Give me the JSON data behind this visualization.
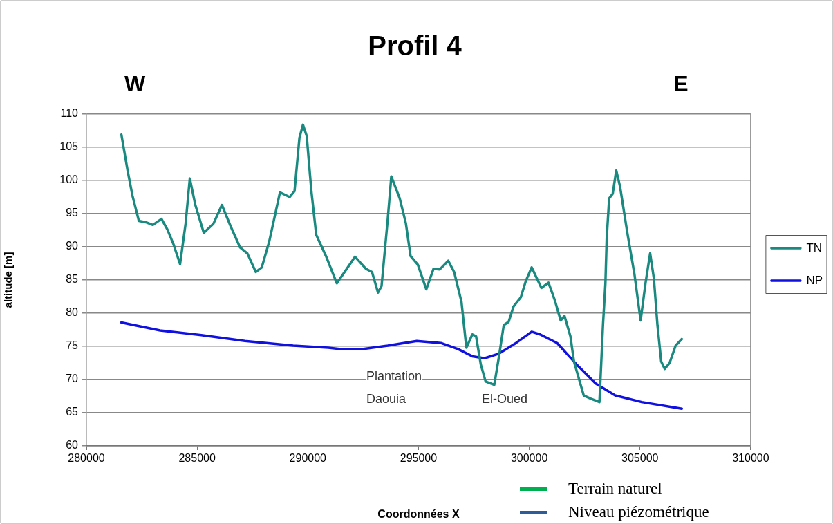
{
  "chart_data": {
    "type": "line",
    "title": "Profil 4",
    "xlabel": "Coordonnées X",
    "ylabel": "altitude [m]",
    "xlim": [
      280000,
      310000
    ],
    "xticks": [
      280000,
      285000,
      290000,
      295000,
      300000,
      305000,
      310000
    ],
    "ylim": [
      60,
      110
    ],
    "yticks": [
      60,
      65,
      70,
      75,
      80,
      85,
      90,
      95,
      100,
      105,
      110
    ],
    "grid": "y",
    "legend": "right",
    "marker": "none",
    "line_style": "solid",
    "series": [
      {
        "name": "TN",
        "color": "#1a8a80",
        "x": [
          281580,
          281860,
          282080,
          282370,
          282680,
          283000,
          283390,
          283660,
          283930,
          284230,
          284480,
          284670,
          284920,
          285300,
          285740,
          286120,
          286500,
          286940,
          287270,
          287650,
          287920,
          288250,
          288740,
          289180,
          289400,
          289620,
          289780,
          289950,
          290160,
          290380,
          290820,
          291310,
          292130,
          292620,
          292900,
          293170,
          293330,
          293610,
          293770,
          294150,
          294430,
          294640,
          294970,
          295350,
          295680,
          295960,
          296340,
          296610,
          296940,
          297160,
          297430,
          297600,
          297810,
          298030,
          298420,
          298630,
          298850,
          299070,
          299290,
          299620,
          299840,
          300110,
          300550,
          300870,
          301150,
          301420,
          301590,
          301860,
          302020,
          302460,
          302790,
          303170,
          303330,
          303440,
          303500,
          303610,
          303770,
          303930,
          304100,
          304430,
          304750,
          305030,
          305250,
          305460,
          305630,
          305790,
          305960,
          306120,
          306340,
          306610,
          306890
        ],
        "values": [
          106.9,
          101.5,
          97.7,
          93.9,
          93.7,
          93.3,
          94.2,
          92.6,
          90.4,
          87.4,
          93.5,
          100.3,
          96.3,
          92.1,
          93.5,
          96.3,
          93.2,
          89.9,
          89.0,
          86.2,
          86.9,
          90.7,
          98.2,
          97.5,
          98.4,
          106.4,
          108.4,
          106.7,
          98.4,
          91.8,
          88.6,
          84.5,
          88.5,
          86.7,
          86.2,
          83.1,
          84.1,
          94.2,
          100.6,
          97.3,
          93.5,
          88.6,
          87.3,
          83.6,
          86.7,
          86.6,
          87.9,
          86.2,
          81.7,
          74.8,
          76.8,
          76.5,
          72.3,
          69.7,
          69.2,
          73.4,
          78.2,
          78.7,
          81.0,
          82.4,
          84.8,
          86.9,
          83.8,
          84.6,
          82.0,
          78.9,
          79.6,
          76.5,
          72.7,
          67.6,
          67.1,
          66.6,
          78.2,
          84.5,
          91.4,
          97.3,
          98.0,
          101.5,
          99.1,
          92.1,
          85.9,
          78.9,
          84.5,
          89.0,
          85.2,
          78.2,
          72.7,
          71.6,
          72.5,
          75.1,
          76.1
        ]
      },
      {
        "name": "NP",
        "color": "#1010e0",
        "x": [
          281580,
          283330,
          285190,
          287160,
          289340,
          290930,
          291420,
          292510,
          293610,
          294920,
          296010,
          296780,
          297430,
          297980,
          298630,
          299400,
          300110,
          300490,
          301260,
          302130,
          303000,
          303880,
          305080,
          306890
        ],
        "values": [
          78.6,
          77.4,
          76.7,
          75.8,
          75.1,
          74.8,
          74.6,
          74.6,
          75.1,
          75.8,
          75.5,
          74.6,
          73.5,
          73.2,
          73.9,
          75.5,
          77.2,
          76.8,
          75.5,
          72.3,
          69.4,
          67.6,
          66.6,
          65.6
        ]
      }
    ],
    "annotations": [
      "Plantation\nDaouia",
      "El-Oued",
      "W",
      "E",
      "Terrain naturel",
      "Niveau piézométrique"
    ]
  }
}
